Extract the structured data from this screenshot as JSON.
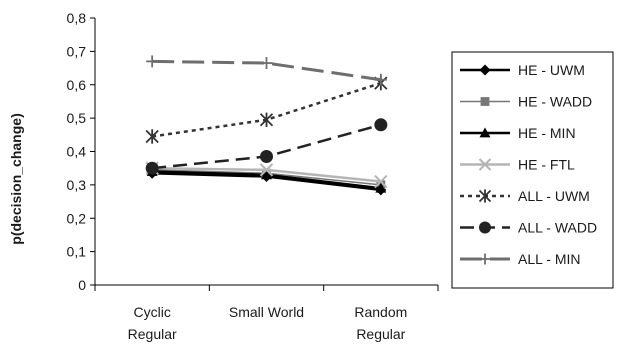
{
  "chart_data": {
    "type": "line",
    "title": "",
    "xlabel": "",
    "ylabel": "p(decision_change)",
    "ylim": [
      0,
      0.8
    ],
    "ytick_step": 0.1,
    "yticks": [
      "0",
      "0,1",
      "0,2",
      "0,3",
      "0,4",
      "0,5",
      "0,6",
      "0,7",
      "0,8"
    ],
    "categories": [
      [
        "Cyclic",
        "Regular"
      ],
      [
        "Small World"
      ],
      [
        "Random",
        "Regular"
      ]
    ],
    "grid": false,
    "legend_position": "right",
    "series": [
      {
        "name": "HE - UWM",
        "values": [
          0.335,
          0.325,
          0.285
        ],
        "color": "#000000",
        "dash": "solid",
        "width": 2.5,
        "marker": "diamond",
        "marker_color": "#000000"
      },
      {
        "name": "HE - WADD",
        "values": [
          0.345,
          0.335,
          0.3
        ],
        "color": "#777777",
        "dash": "solid",
        "width": 1.5,
        "marker": "square",
        "marker_color": "#777777"
      },
      {
        "name": "HE - MIN",
        "values": [
          0.34,
          0.33,
          0.29
        ],
        "color": "#000000",
        "dash": "solid",
        "width": 2.5,
        "marker": "triangle",
        "marker_color": "#000000"
      },
      {
        "name": "HE - FTL",
        "values": [
          0.35,
          0.345,
          0.31
        ],
        "color": "#b5b5b5",
        "dash": "solid",
        "width": 2.5,
        "marker": "x",
        "marker_color": "#b5b5b5"
      },
      {
        "name": "ALL - UWM",
        "values": [
          0.445,
          0.495,
          0.605
        ],
        "color": "#333333",
        "dash": "dot",
        "width": 2.5,
        "marker": "asterisk",
        "marker_color": "#333333"
      },
      {
        "name": "ALL - WADD",
        "values": [
          0.35,
          0.385,
          0.48
        ],
        "color": "#222222",
        "dash": "dash",
        "width": 2.5,
        "marker": "circle",
        "marker_color": "#222222"
      },
      {
        "name": "ALL - MIN",
        "values": [
          0.67,
          0.665,
          0.615
        ],
        "color": "#6e6e6e",
        "dash": "longdash",
        "width": 3,
        "marker": "plus",
        "marker_color": "#6e6e6e"
      }
    ]
  }
}
